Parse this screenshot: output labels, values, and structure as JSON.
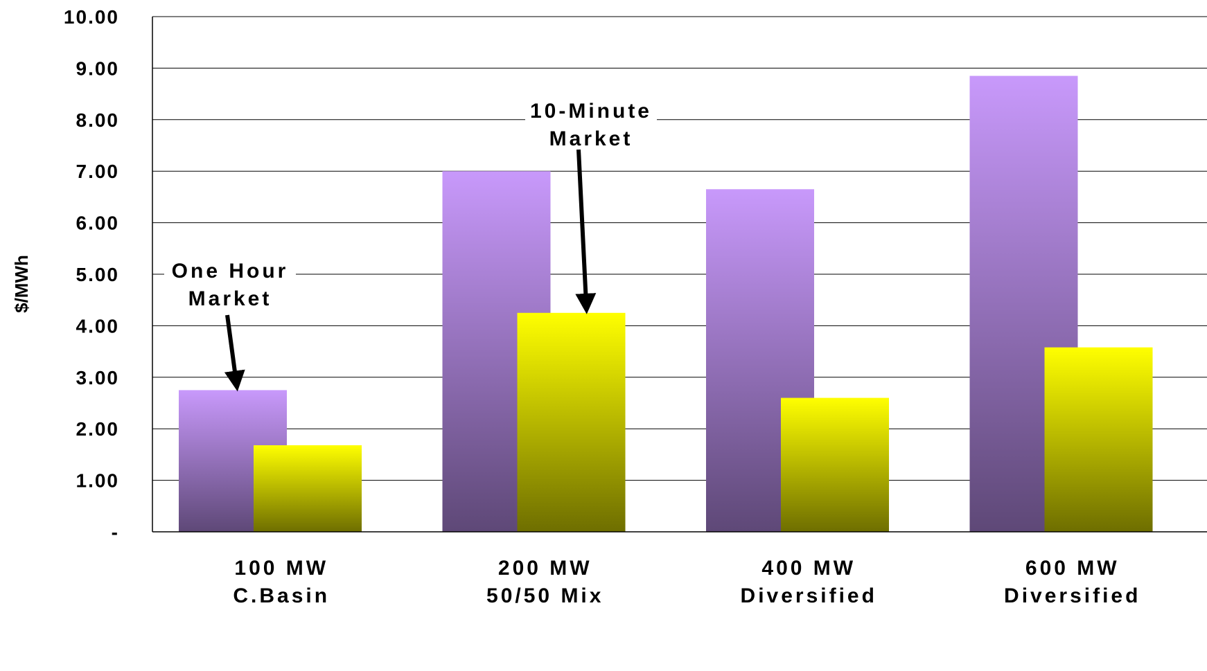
{
  "chart_data": {
    "type": "bar",
    "ylabel": "$/MWh",
    "ylim": [
      0,
      10
    ],
    "y_ticks": [
      {
        "value": 0,
        "label": "-"
      },
      {
        "value": 1,
        "label": "1.00"
      },
      {
        "value": 2,
        "label": "2.00"
      },
      {
        "value": 3,
        "label": "3.00"
      },
      {
        "value": 4,
        "label": "4.00"
      },
      {
        "value": 5,
        "label": "5.00"
      },
      {
        "value": 6,
        "label": "6.00"
      },
      {
        "value": 7,
        "label": "7.00"
      },
      {
        "value": 8,
        "label": "8.00"
      },
      {
        "value": 9,
        "label": "9.00"
      },
      {
        "value": 10,
        "label": "10.00"
      }
    ],
    "categories": [
      [
        "100 MW",
        "C.Basin"
      ],
      [
        "200 MW",
        "50/50 Mix"
      ],
      [
        "400 MW",
        "Diversified"
      ],
      [
        "600 MW",
        "Diversified"
      ]
    ],
    "series": [
      {
        "values": [
          2.75,
          7.0,
          6.65,
          8.85
        ],
        "color_top": "#c899fb",
        "color_bottom": "#5e4877"
      },
      {
        "values": [
          1.68,
          4.25,
          2.6,
          3.58
        ],
        "color_top": "#ffff00",
        "color_bottom": "#6e6e00"
      }
    ],
    "annotations": [
      {
        "lines": [
          "One Hour",
          "Market"
        ],
        "series": 0,
        "category": 0
      },
      {
        "lines": [
          "10-Minute",
          "Market"
        ],
        "series": 1,
        "category": 1
      }
    ],
    "grid": true
  }
}
